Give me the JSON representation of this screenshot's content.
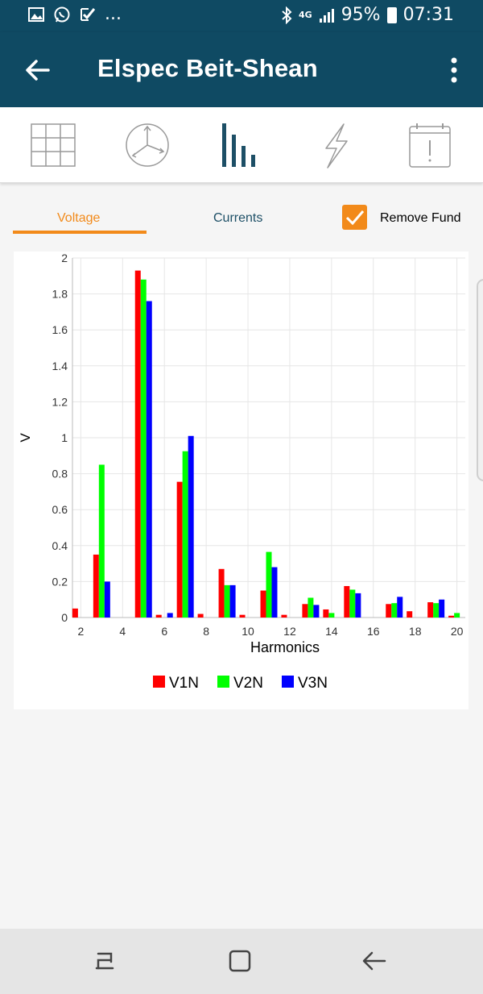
{
  "status_bar": {
    "battery": "95%",
    "time": "07:31",
    "network": "4G",
    "more_notifications": "..."
  },
  "app_bar": {
    "title": "Elspec Beit-Shean"
  },
  "toolbar": {
    "icons": [
      "grid-icon",
      "phasor-icon",
      "harmonics-bars-icon",
      "lightning-icon",
      "calendar-alert-icon"
    ]
  },
  "tabs": {
    "voltage": "Voltage",
    "currents": "Currents"
  },
  "options": {
    "remove_fund_label": "Remove Fund",
    "remove_fund_checked": true
  },
  "colors": {
    "primary": "#0f4a63",
    "accent": "#f28a1a",
    "v1n": "#ff0000",
    "v2n": "#00ff00",
    "v3n": "#0000ff"
  },
  "chart_data": {
    "type": "bar",
    "title": "",
    "xlabel": "Harmonics",
    "ylabel": "V",
    "x": [
      2,
      3,
      4,
      5,
      6,
      7,
      8,
      9,
      10,
      11,
      12,
      13,
      14,
      15,
      16,
      17,
      18,
      19,
      20
    ],
    "xticks": [
      2,
      4,
      6,
      8,
      10,
      12,
      14,
      16,
      18,
      20
    ],
    "ylim": [
      0,
      2
    ],
    "yticks": [
      0,
      0.2,
      0.4,
      0.6,
      0.8,
      1,
      1.2,
      1.4,
      1.6,
      1.8,
      2
    ],
    "grid": true,
    "legend_position": "bottom",
    "series": [
      {
        "name": "V1N",
        "color": "#ff0000",
        "values": [
          0.05,
          0.35,
          0.0,
          1.93,
          0.015,
          0.755,
          0.02,
          0.27,
          0.015,
          0.15,
          0.015,
          0.075,
          0.045,
          0.175,
          0.0,
          0.075,
          0.035,
          0.085,
          0.01
        ]
      },
      {
        "name": "V2N",
        "color": "#00ff00",
        "values": [
          0.0,
          0.85,
          0.0,
          1.88,
          0.0,
          0.925,
          0.0,
          0.18,
          0.0,
          0.365,
          0.0,
          0.11,
          0.025,
          0.155,
          0.0,
          0.08,
          0.0,
          0.08,
          0.025
        ]
      },
      {
        "name": "V3N",
        "color": "#0000ff",
        "values": [
          0.0,
          0.2,
          0.0,
          1.76,
          0.025,
          1.01,
          0.0,
          0.18,
          0.0,
          0.28,
          0.0,
          0.07,
          0.0,
          0.135,
          0.0,
          0.115,
          0.0,
          0.1,
          0.0
        ]
      }
    ]
  }
}
